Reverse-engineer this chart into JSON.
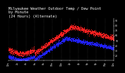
{
  "title": "Milwaukee Weather Outdoor Temp / Dew Point\nby Minute\n(24 Hours) (Alternate)",
  "title_fontsize": 3.8,
  "bg_color": "#000000",
  "plot_bg": "#000000",
  "temp_color": "#ff2222",
  "dew_color": "#2222ff",
  "grid_color": "#555555",
  "text_color": "#ffffff",
  "ylim": [
    10,
    95
  ],
  "xlim": [
    0,
    1440
  ],
  "marker_size": 0.5
}
